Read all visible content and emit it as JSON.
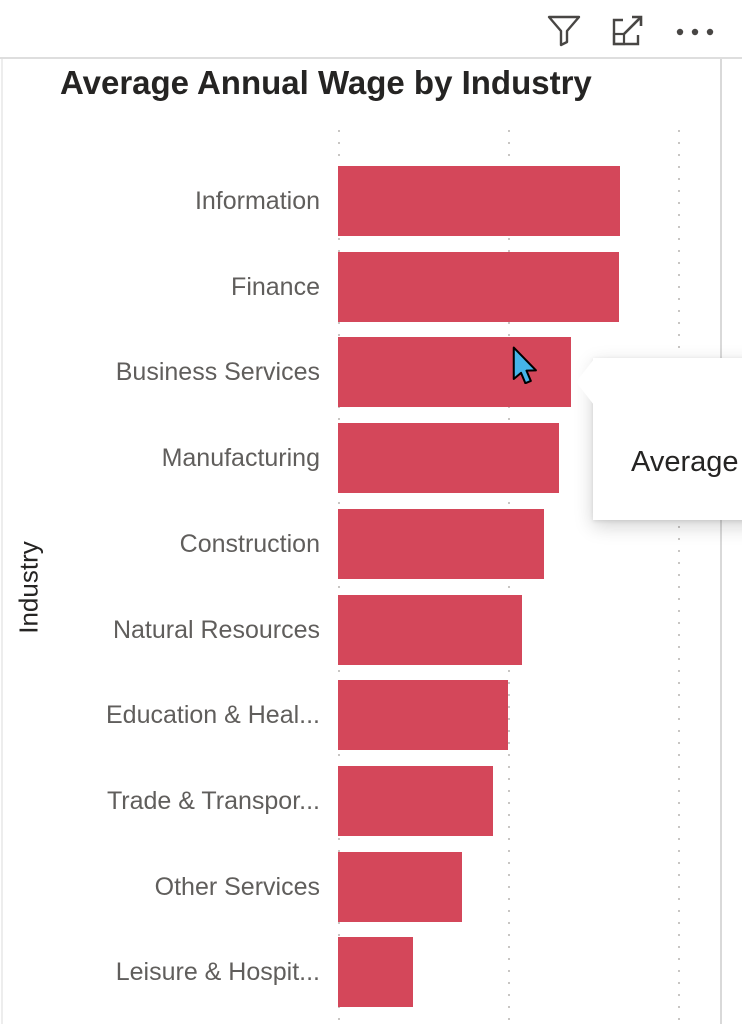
{
  "visual_header": {
    "filter_label": "filter",
    "focus_label": "focus-mode",
    "more_label": "more-options"
  },
  "tooltip": {
    "text": "Average",
    "note": "tooltip truncated at right edge of screenshot",
    "anchored_category": "Business Services"
  },
  "chart_data": {
    "type": "bar",
    "orientation": "horizontal",
    "title": "Average Annual Wage by Industry",
    "xlabel": "",
    "ylabel": "Industry",
    "categories": [
      "Information",
      "Finance",
      "Business Services",
      "Manufacturing",
      "Construction",
      "Natural Resources",
      "Education & Heal...",
      "Trade & Transpor...",
      "Other Services",
      "Leisure & Hospit..."
    ],
    "values": [
      1.66,
      1.65,
      1.37,
      1.3,
      1.21,
      1.08,
      1.0,
      0.91,
      0.73,
      0.44
    ],
    "value_units": "relative units; x-axis has no visible tick labels, 1 unit = one gridline interval",
    "xlim": [
      0,
      2.26
    ],
    "grid": "vertical dotted gridlines at 0, 1 and 2 units",
    "legend": "none",
    "bar_color": "#d4475a",
    "highlighted_category": "Business Services"
  },
  "colors": {
    "bar": "#d4475a",
    "category_label": "#605e5c",
    "title_text": "#252423",
    "gridline": "#c8c6c4",
    "header_icon": "#484644",
    "cursor_fill": "#45b4e8"
  }
}
